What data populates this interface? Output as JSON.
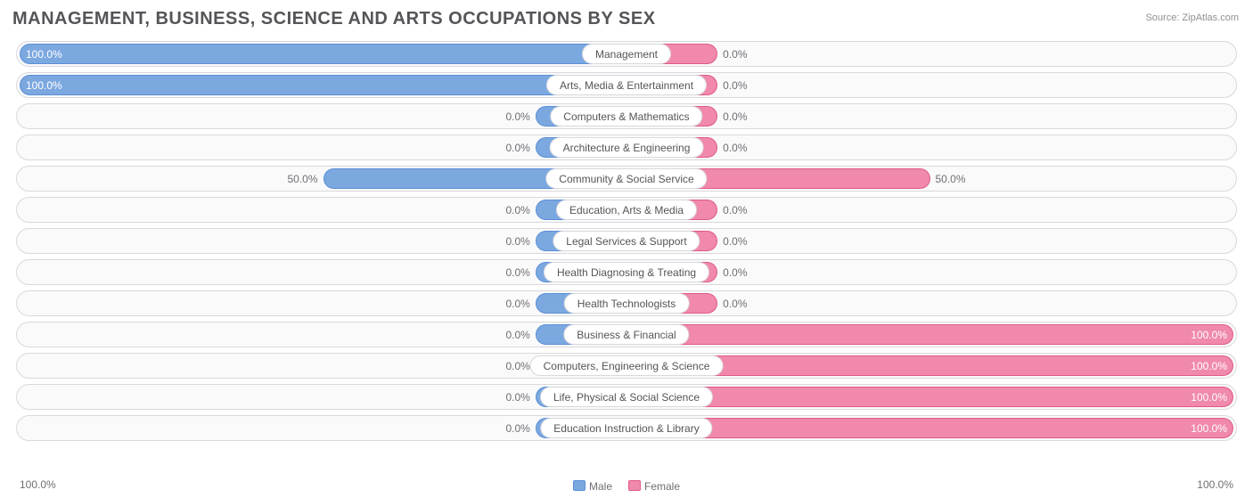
{
  "title": "MANAGEMENT, BUSINESS, SCIENCE AND ARTS OCCUPATIONS BY SEX",
  "source": "Source: ZipAtlas.com",
  "axis": {
    "left": "100.0%",
    "right": "100.0%"
  },
  "legend": {
    "male": "Male",
    "female": "Female"
  },
  "colors": {
    "male_fill": "#7ca8e0",
    "male_border": "#5a8fd6",
    "female_fill": "#f089ab",
    "female_border": "#e05a8a",
    "track_border": "#d9d9de",
    "track_bg": "#fafafb",
    "text": "#555559",
    "muted": "#6f6f74"
  },
  "min_bar_pct": 15,
  "rows": [
    {
      "label": "Management",
      "male": 100.0,
      "female": 0.0,
      "male_txt": "100.0%",
      "female_txt": "0.0%"
    },
    {
      "label": "Arts, Media & Entertainment",
      "male": 100.0,
      "female": 0.0,
      "male_txt": "100.0%",
      "female_txt": "0.0%"
    },
    {
      "label": "Computers & Mathematics",
      "male": 0.0,
      "female": 0.0,
      "male_txt": "0.0%",
      "female_txt": "0.0%"
    },
    {
      "label": "Architecture & Engineering",
      "male": 0.0,
      "female": 0.0,
      "male_txt": "0.0%",
      "female_txt": "0.0%"
    },
    {
      "label": "Community & Social Service",
      "male": 50.0,
      "female": 50.0,
      "male_txt": "50.0%",
      "female_txt": "50.0%"
    },
    {
      "label": "Education, Arts & Media",
      "male": 0.0,
      "female": 0.0,
      "male_txt": "0.0%",
      "female_txt": "0.0%"
    },
    {
      "label": "Legal Services & Support",
      "male": 0.0,
      "female": 0.0,
      "male_txt": "0.0%",
      "female_txt": "0.0%"
    },
    {
      "label": "Health Diagnosing & Treating",
      "male": 0.0,
      "female": 0.0,
      "male_txt": "0.0%",
      "female_txt": "0.0%"
    },
    {
      "label": "Health Technologists",
      "male": 0.0,
      "female": 0.0,
      "male_txt": "0.0%",
      "female_txt": "0.0%"
    },
    {
      "label": "Business & Financial",
      "male": 0.0,
      "female": 100.0,
      "male_txt": "0.0%",
      "female_txt": "100.0%"
    },
    {
      "label": "Computers, Engineering & Science",
      "male": 0.0,
      "female": 100.0,
      "male_txt": "0.0%",
      "female_txt": "100.0%"
    },
    {
      "label": "Life, Physical & Social Science",
      "male": 0.0,
      "female": 100.0,
      "male_txt": "0.0%",
      "female_txt": "100.0%"
    },
    {
      "label": "Education Instruction & Library",
      "male": 0.0,
      "female": 100.0,
      "male_txt": "0.0%",
      "female_txt": "100.0%"
    }
  ]
}
